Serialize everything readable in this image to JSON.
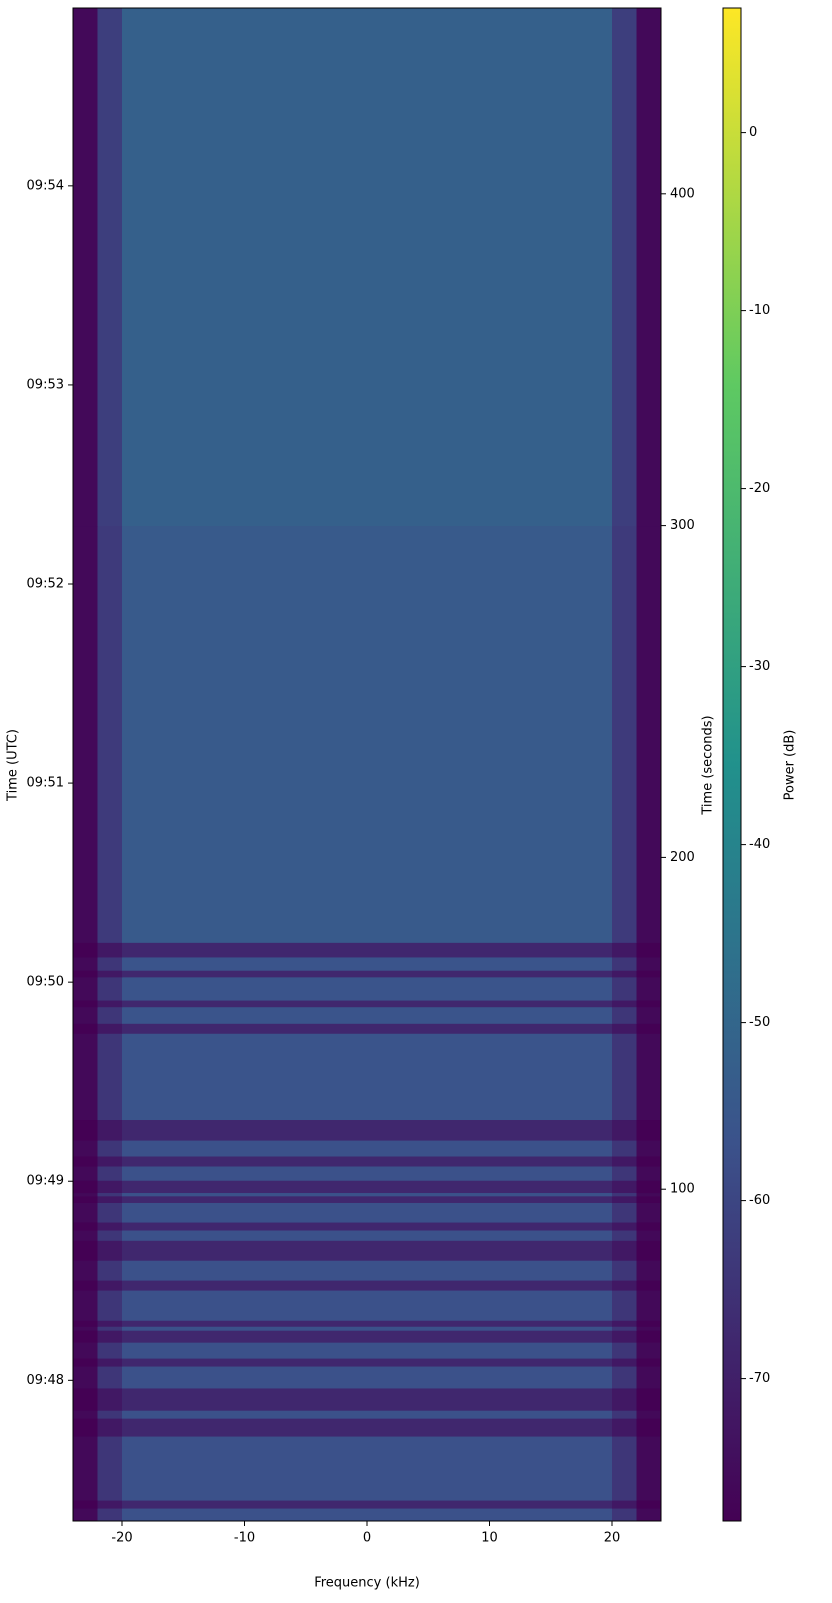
{
  "chart_data": {
    "type": "heatmap",
    "x_label": "Frequency (kHz)",
    "y_label": "Time (UTC)",
    "y2_label": "Time (seconds)",
    "colorbar_label": "Power (dB)",
    "colormap": "viridis",
    "x_edges": [
      -24,
      -22,
      -20,
      20,
      22,
      24
    ],
    "y_edges": [
      0,
      3.9,
      6.3,
      25.6,
      31,
      33.4,
      40.1,
      46.7,
      49.1,
      53.9,
      57.5,
      58.7,
      60.5,
      69.6,
      72.6,
      78.6,
      84.6,
      87.7,
      90.1,
      96,
      98,
      99,
      102.7,
      107,
      110,
      114.8,
      121,
      147,
      150,
      155,
      157,
      164,
      166,
      170,
      174.4,
      300,
      456
    ],
    "values": [
      [
        -76,
        -64,
        -57,
        -64,
        -76
      ],
      [
        -78,
        -72,
        -68,
        -72,
        -78
      ],
      [
        -76,
        -64,
        -57,
        -64,
        -76
      ],
      [
        -78,
        -72,
        -68,
        -72,
        -78
      ],
      [
        -76,
        -64,
        -57,
        -64,
        -76
      ],
      [
        -78,
        -72,
        -68,
        -72,
        -78
      ],
      [
        -76,
        -64,
        -57,
        -64,
        -76
      ],
      [
        -78,
        -72,
        -68,
        -72,
        -78
      ],
      [
        -76,
        -64,
        -57,
        -64,
        -76
      ],
      [
        -78,
        -72,
        -68,
        -72,
        -78
      ],
      [
        -76,
        -64,
        -57,
        -64,
        -76
      ],
      [
        -78,
        -72,
        -68,
        -72,
        -78
      ],
      [
        -76,
        -64,
        -57,
        -64,
        -76
      ],
      [
        -78,
        -72,
        -68,
        -72,
        -78
      ],
      [
        -76,
        -64,
        -57,
        -64,
        -76
      ],
      [
        -78,
        -72,
        -68,
        -72,
        -78
      ],
      [
        -76,
        -64,
        -57,
        -64,
        -76
      ],
      [
        -78,
        -72,
        -68,
        -72,
        -78
      ],
      [
        -76,
        -64,
        -57,
        -64,
        -76
      ],
      [
        -78,
        -72,
        -68,
        -72,
        -78
      ],
      [
        -76,
        -64,
        -57,
        -64,
        -76
      ],
      [
        -78,
        -72,
        -68,
        -72,
        -78
      ],
      [
        -76,
        -64,
        -57,
        -64,
        -76
      ],
      [
        -78,
        -72,
        -68,
        -72,
        -78
      ],
      [
        -76,
        -64,
        -57,
        -64,
        -76
      ],
      [
        -78,
        -72,
        -68,
        -72,
        -78
      ],
      [
        -76,
        -64,
        -56,
        -64,
        -76
      ],
      [
        -78,
        -72,
        -68,
        -72,
        -78
      ],
      [
        -76,
        -64,
        -56,
        -64,
        -76
      ],
      [
        -78,
        -72,
        -68,
        -72,
        -78
      ],
      [
        -76,
        -64,
        -56,
        -64,
        -76
      ],
      [
        -78,
        -72,
        -68,
        -72,
        -78
      ],
      [
        -76,
        -64,
        -56,
        -64,
        -76
      ],
      [
        -78,
        -72,
        -68,
        -72,
        -78
      ],
      [
        -76,
        -63,
        -54,
        -63,
        -76
      ],
      [
        -76,
        -62,
        -52,
        -62,
        -76
      ]
    ],
    "xlim": [
      -24,
      24
    ],
    "xticks": [
      -20,
      -10,
      0,
      10,
      20
    ],
    "ylim": [
      0,
      456
    ],
    "yticks": [
      {
        "value": 42.4,
        "label": "09:48"
      },
      {
        "value": 102.4,
        "label": "09:49"
      },
      {
        "value": 162.4,
        "label": "09:50"
      },
      {
        "value": 222.4,
        "label": "09:51"
      },
      {
        "value": 282.4,
        "label": "09:52"
      },
      {
        "value": 342.4,
        "label": "09:53"
      },
      {
        "value": 402.4,
        "label": "09:54"
      }
    ],
    "y2lim": [
      0,
      456
    ],
    "y2ticks": [
      100,
      200,
      300,
      400
    ],
    "clim": [
      -78,
      7
    ],
    "cticks": [
      0,
      -10,
      -20,
      -30,
      -40,
      -50,
      -60,
      -70
    ]
  }
}
